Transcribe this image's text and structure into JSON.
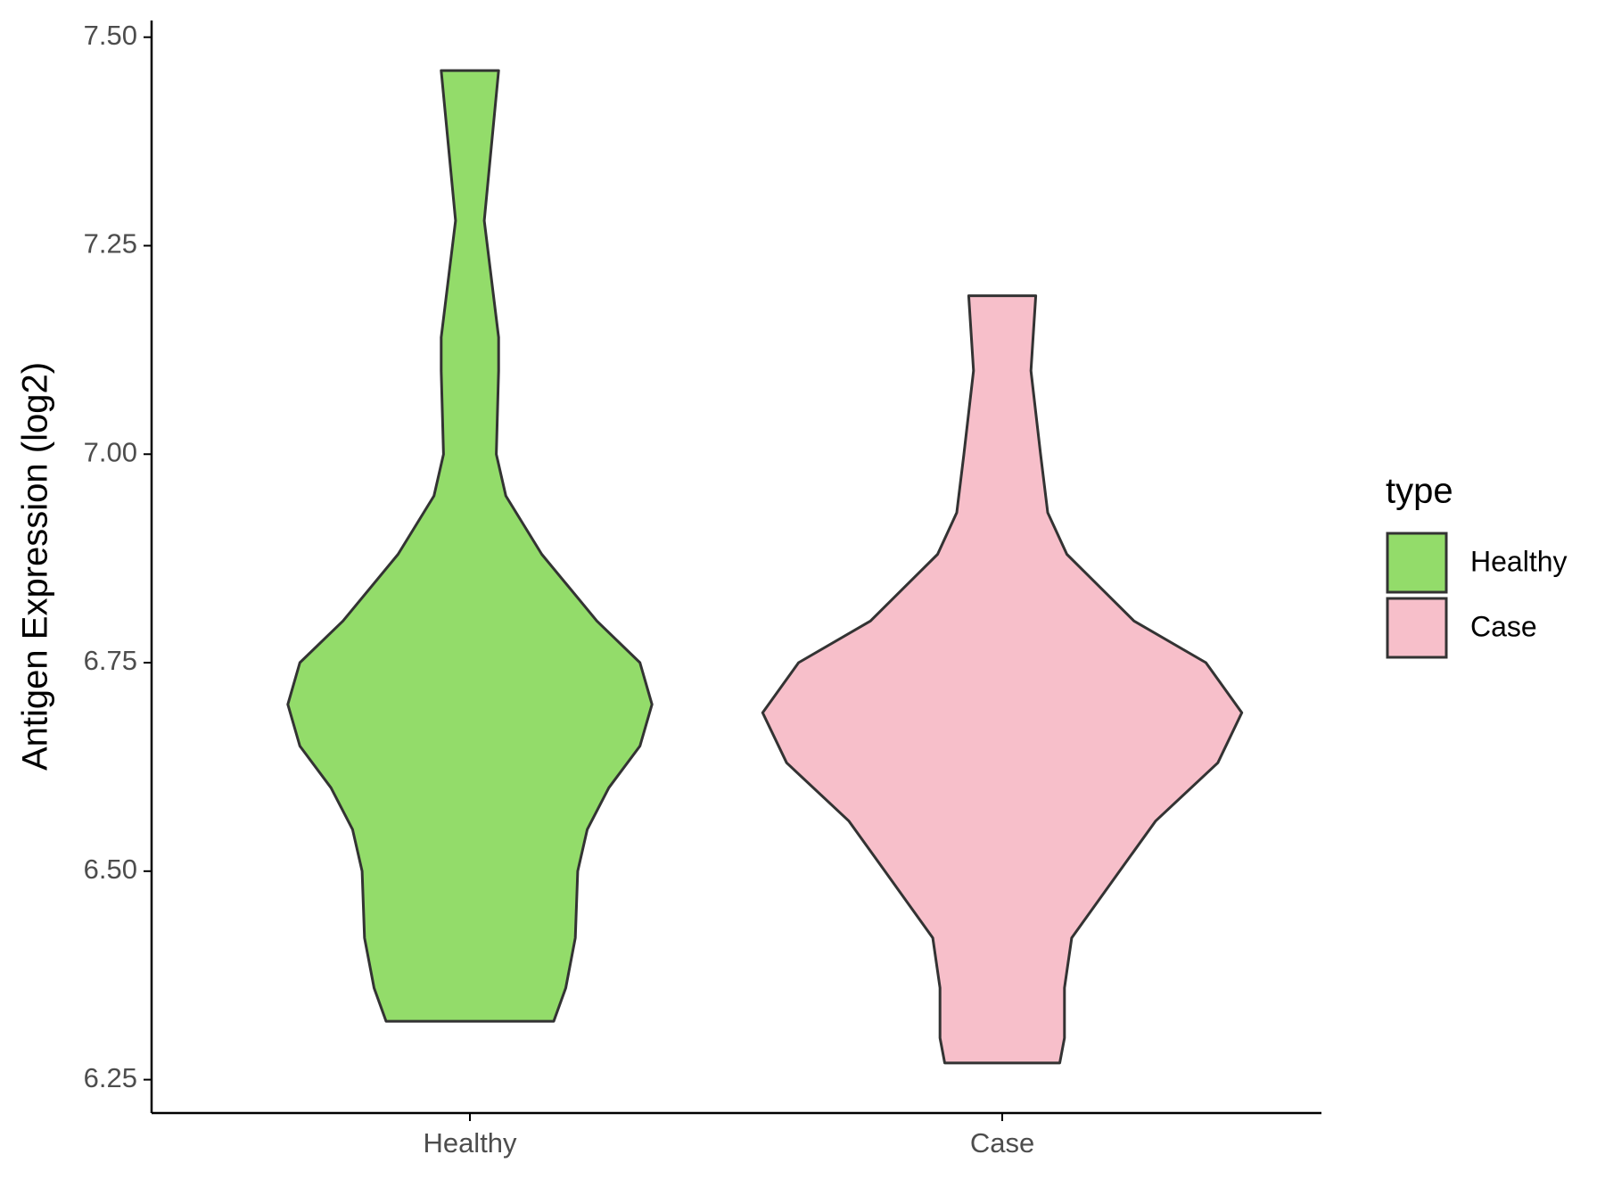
{
  "chart_data": {
    "type": "violin",
    "y_label": "Antigen Expression (log2)",
    "categories": [
      "Healthy",
      "Case"
    ],
    "legend_title": "type",
    "ylim": [
      6.21,
      7.52
    ],
    "yticks": [
      {
        "value": 6.25,
        "label": "6.25"
      },
      {
        "value": 6.5,
        "label": "6.50"
      },
      {
        "value": 6.75,
        "label": "6.75"
      },
      {
        "value": 7.0,
        "label": "7.00"
      },
      {
        "value": 7.25,
        "label": "7.25"
      },
      {
        "value": 7.5,
        "label": "7.50"
      }
    ],
    "legend_position": "right",
    "series": [
      {
        "name": "Healthy",
        "color": "#93dc6a",
        "y": [
          7.46,
          7.28,
          7.14,
          7.1,
          7.0,
          6.95,
          6.88,
          6.8,
          6.75,
          6.7,
          6.65,
          6.6,
          6.55,
          6.5,
          6.42,
          6.36,
          6.32
        ],
        "density": [
          0.12,
          0.06,
          0.12,
          0.12,
          0.11,
          0.15,
          0.3,
          0.53,
          0.71,
          0.76,
          0.71,
          0.58,
          0.49,
          0.45,
          0.44,
          0.4,
          0.35
        ]
      },
      {
        "name": "Case",
        "color": "#f7bfca",
        "y": [
          7.19,
          7.1,
          7.0,
          6.93,
          6.88,
          6.8,
          6.75,
          6.69,
          6.63,
          6.56,
          6.5,
          6.42,
          6.36,
          6.3,
          6.27
        ],
        "density": [
          0.14,
          0.12,
          0.16,
          0.19,
          0.27,
          0.55,
          0.85,
          1.0,
          0.9,
          0.64,
          0.49,
          0.29,
          0.26,
          0.26,
          0.24
        ]
      }
    ]
  }
}
